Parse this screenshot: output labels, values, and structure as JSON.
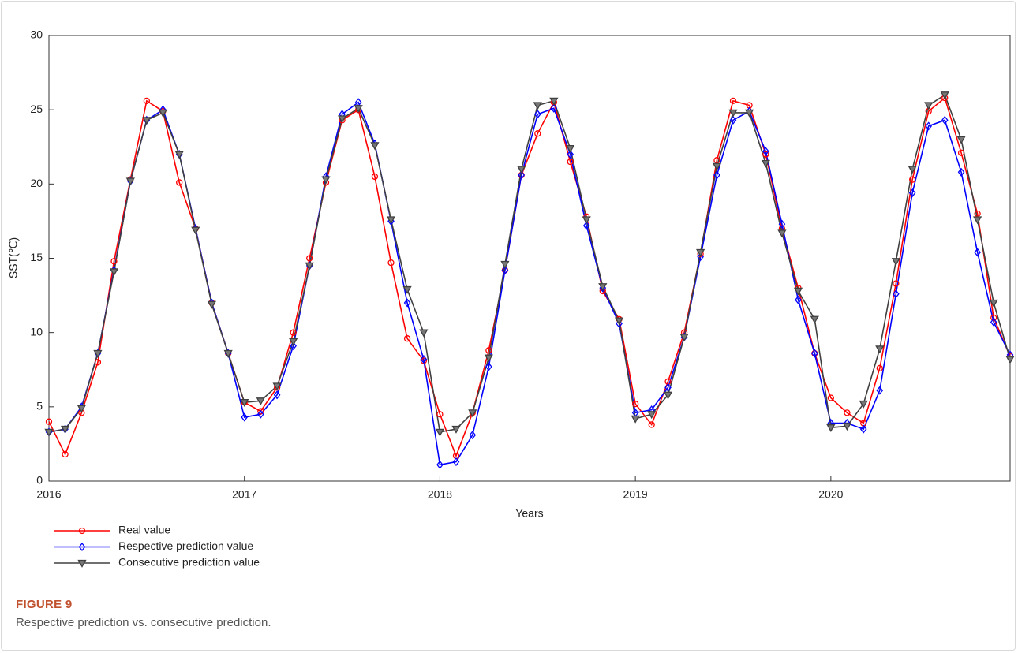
{
  "chart_data": {
    "type": "line",
    "x_label": "Years",
    "y_label": "SST(℃)",
    "x": [
      2016,
      2016.083,
      2016.167,
      2016.25,
      2016.333,
      2016.417,
      2016.5,
      2016.583,
      2016.667,
      2016.75,
      2016.833,
      2016.917,
      2017,
      2017.083,
      2017.167,
      2017.25,
      2017.333,
      2017.417,
      2017.5,
      2017.583,
      2017.667,
      2017.75,
      2017.833,
      2017.917,
      2018,
      2018.083,
      2018.167,
      2018.25,
      2018.333,
      2018.417,
      2018.5,
      2018.583,
      2018.667,
      2018.75,
      2018.833,
      2018.917,
      2019,
      2019.083,
      2019.167,
      2019.25,
      2019.333,
      2019.417,
      2019.5,
      2019.583,
      2019.667,
      2019.75,
      2019.833,
      2019.917,
      2020,
      2020.083,
      2020.167,
      2020.25,
      2020.333,
      2020.417,
      2020.5,
      2020.583,
      2020.667,
      2020.75,
      2020.833,
      2020.917
    ],
    "series": [
      {
        "name": "Real value",
        "color": "#ff0000",
        "marker": "circle",
        "values": [
          4.0,
          1.8,
          4.6,
          8.0,
          14.8,
          20.3,
          25.6,
          24.9,
          20.1,
          17.0,
          12.0,
          8.6,
          5.3,
          4.7,
          6.3,
          10.0,
          15.0,
          20.1,
          24.3,
          25.0,
          20.5,
          14.7,
          9.6,
          8.1,
          4.5,
          1.7,
          4.6,
          8.8,
          14.2,
          20.6,
          23.4,
          25.5,
          21.5,
          17.8,
          12.8,
          10.9,
          5.2,
          3.8,
          6.7,
          10.0,
          15.3,
          21.6,
          25.6,
          25.3,
          22.0,
          17.0,
          13.0,
          8.6,
          5.6,
          4.6,
          3.9,
          7.6,
          13.3,
          20.3,
          24.9,
          25.8,
          22.1,
          18.0,
          11.0,
          8.4
        ]
      },
      {
        "name": "Respective prediction value",
        "color": "#0000ff",
        "marker": "diamond",
        "values": [
          3.3,
          3.5,
          5.0,
          8.6,
          14.2,
          20.2,
          24.3,
          25.0,
          22.0,
          17.0,
          12.0,
          8.6,
          4.3,
          4.5,
          5.8,
          9.1,
          14.5,
          20.5,
          24.7,
          25.5,
          22.7,
          17.5,
          12.0,
          8.2,
          1.1,
          1.3,
          3.1,
          7.7,
          14.2,
          20.6,
          24.7,
          25.1,
          22.0,
          17.2,
          13.0,
          10.6,
          4.6,
          4.8,
          6.3,
          9.7,
          15.1,
          20.6,
          24.3,
          24.9,
          22.2,
          17.3,
          12.2,
          8.6,
          3.9,
          3.9,
          3.5,
          6.1,
          12.6,
          19.4,
          23.9,
          24.3,
          20.8,
          15.4,
          10.7,
          8.5
        ]
      },
      {
        "name": "Consecutive prediction value",
        "color": "#404040",
        "marker": "triangle-down",
        "values": [
          3.3,
          3.5,
          4.9,
          8.6,
          14.1,
          20.2,
          24.3,
          24.8,
          22.0,
          16.9,
          11.9,
          8.6,
          5.3,
          5.4,
          6.4,
          9.4,
          14.5,
          20.3,
          24.4,
          25.1,
          22.6,
          17.6,
          12.9,
          10.0,
          3.3,
          3.5,
          4.6,
          8.3,
          14.6,
          21.0,
          25.3,
          25.6,
          22.4,
          17.6,
          13.1,
          10.8,
          4.2,
          4.5,
          5.8,
          9.7,
          15.4,
          21.2,
          24.8,
          24.8,
          21.4,
          16.7,
          12.8,
          10.9,
          3.6,
          3.7,
          5.2,
          8.9,
          14.8,
          21.0,
          25.3,
          26.0,
          23.0,
          17.6,
          12.0,
          8.2
        ]
      }
    ],
    "xlim": [
      2016,
      2020.917
    ],
    "xticks": [
      2016,
      2017,
      2018,
      2019,
      2020
    ],
    "ylim": [
      0,
      30
    ],
    "yticks": [
      0,
      5,
      10,
      15,
      20,
      25,
      30
    ],
    "grid": false,
    "legend": "bottom-left"
  },
  "caption": {
    "label": "FIGURE 9",
    "text": "Respective prediction vs. consecutive prediction."
  }
}
